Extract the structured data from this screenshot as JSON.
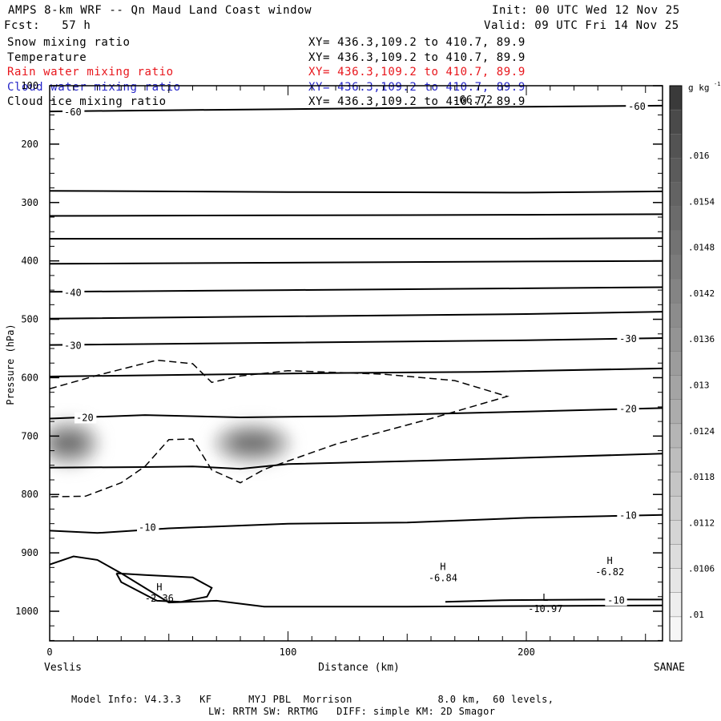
{
  "header": {
    "title": "AMPS 8-km WRF -- Qn Maud Land Coast window",
    "init": "Init: 00 UTC Wed 12 Nov 25",
    "fcst": "Fcst:   57 h",
    "valid": "Valid: 09 UTC Fri 14 Nov 25"
  },
  "fields": [
    {
      "name": "Snow mixing ratio",
      "xy": "XY= 436.3,109.2 to 410.7, 89.9",
      "color": "#000000"
    },
    {
      "name": "Temperature",
      "xy": "XY= 436.3,109.2 to 410.7, 89.9",
      "color": "#000000"
    },
    {
      "name": "Rain water mixing ratio",
      "xy": "XY= 436.3,109.2 to 410.7, 89.9",
      "color": "#e8161c"
    },
    {
      "name": "Cloud water mixing ratio",
      "xy": "XY= 436.3,109.2 to 410.7, 89.9",
      "color": "#2424c8"
    },
    {
      "name": "Cloud ice mixing ratio",
      "xy": "XY= 436.3,109.2 to 410.7, 89.9",
      "color": "#000000"
    }
  ],
  "overlap_label": "-66.72",
  "footer": {
    "line1": "Model Info: V4.3.3   KF      MYJ PBL  Morrison              8.0 km,  60 levels,",
    "line2": "LW: RRTM SW: RRTMG   DIFF: simple KM: 2D Smagor"
  },
  "chart_data": {
    "type": "cross-section",
    "xlabel": "Distance (km)",
    "ylabel": "Pressure (hPa)",
    "xlim": [
      0,
      258
    ],
    "ylim": [
      1050,
      100
    ],
    "x_ticks": [
      0,
      100,
      200
    ],
    "y_ticks": [
      100,
      200,
      300,
      400,
      500,
      600,
      700,
      800,
      900,
      1000
    ],
    "left_endpoint": "Veslis",
    "right_endpoint": "SANAE",
    "colorbar": {
      "unit": "g kg",
      "unit_exp": "-1",
      "labels": [
        ".016",
        ".0154",
        ".0148",
        ".0142",
        ".0136",
        ".013",
        ".0124",
        ".0118",
        ".0112",
        ".0106",
        ".01"
      ],
      "levels": [
        0.0166,
        0.016,
        0.0157,
        0.0154,
        0.0151,
        0.0148,
        0.0145,
        0.0142,
        0.0139,
        0.0136,
        0.0133,
        0.013,
        0.0127,
        0.0124,
        0.0121,
        0.0118,
        0.0115,
        0.0112,
        0.0109,
        0.0106,
        0.0103,
        0.01,
        0.0097
      ]
    },
    "temperature_contours": [
      {
        "label": "-60",
        "points": [
          [
            0,
            144
          ],
          [
            50,
            142
          ],
          [
            100,
            140
          ],
          [
            150,
            138
          ],
          [
            200,
            136
          ],
          [
            258,
            134
          ]
        ]
      },
      {
        "label": "",
        "points": [
          [
            0,
            280
          ],
          [
            100,
            282
          ],
          [
            200,
            283
          ],
          [
            258,
            281
          ]
        ]
      },
      {
        "label": "",
        "points": [
          [
            0,
            323
          ],
          [
            100,
            322
          ],
          [
            200,
            321
          ],
          [
            258,
            320
          ]
        ]
      },
      {
        "label": "",
        "points": [
          [
            0,
            362
          ],
          [
            100,
            362
          ],
          [
            200,
            362
          ],
          [
            258,
            361
          ]
        ]
      },
      {
        "label": "",
        "points": [
          [
            0,
            405
          ],
          [
            100,
            403
          ],
          [
            200,
            401
          ],
          [
            258,
            400
          ]
        ]
      },
      {
        "label": "-40",
        "points": [
          [
            0,
            453
          ],
          [
            100,
            450
          ],
          [
            200,
            447
          ],
          [
            258,
            445
          ]
        ]
      },
      {
        "label": "",
        "points": [
          [
            0,
            499
          ],
          [
            100,
            495
          ],
          [
            200,
            491
          ],
          [
            258,
            487
          ]
        ]
      },
      {
        "label": "-30",
        "points": [
          [
            0,
            544
          ],
          [
            100,
            540
          ],
          [
            200,
            536
          ],
          [
            258,
            532
          ]
        ]
      },
      {
        "label": "",
        "points": [
          [
            0,
            598
          ],
          [
            60,
            595
          ],
          [
            120,
            592
          ],
          [
            180,
            590
          ],
          [
            258,
            584
          ]
        ]
      },
      {
        "label": "-20",
        "points": [
          [
            0,
            670
          ],
          [
            40,
            664
          ],
          [
            80,
            668
          ],
          [
            120,
            666
          ],
          [
            200,
            658
          ],
          [
            258,
            652
          ]
        ]
      },
      {
        "label": "",
        "points": [
          [
            0,
            754
          ],
          [
            40,
            753
          ],
          [
            60,
            752
          ],
          [
            80,
            756
          ],
          [
            100,
            748
          ],
          [
            160,
            742
          ],
          [
            258,
            730
          ]
        ]
      },
      {
        "label": "-10",
        "points": [
          [
            0,
            862
          ],
          [
            20,
            866
          ],
          [
            50,
            858
          ],
          [
            100,
            850
          ],
          [
            150,
            848
          ],
          [
            200,
            840
          ],
          [
            258,
            835
          ]
        ]
      },
      {
        "label": "",
        "points": [
          [
            0,
            920
          ],
          [
            10,
            906
          ],
          [
            20,
            912
          ],
          [
            30,
            935
          ],
          [
            50,
            985
          ],
          [
            70,
            982
          ],
          [
            90,
            992
          ],
          [
            150,
            992
          ],
          [
            258,
            990
          ]
        ]
      },
      {
        "label": "",
        "points": [
          [
            28,
            935
          ],
          [
            40,
            938
          ],
          [
            60,
            942
          ],
          [
            68,
            960
          ],
          [
            66,
            975
          ],
          [
            55,
            984
          ],
          [
            45,
            982
          ],
          [
            30,
            950
          ],
          [
            28,
            935
          ]
        ]
      },
      {
        "label": "-10",
        "points": [
          [
            166,
            984
          ],
          [
            190,
            981
          ],
          [
            230,
            980
          ],
          [
            258,
            980
          ]
        ]
      }
    ],
    "dashed_contours": [
      {
        "points": [
          [
            0,
            619
          ],
          [
            20,
            596
          ],
          [
            45,
            570
          ],
          [
            60,
            576
          ],
          [
            68,
            608
          ],
          [
            80,
            597
          ],
          [
            100,
            588
          ],
          [
            140,
            594
          ],
          [
            170,
            605
          ],
          [
            192,
            632
          ],
          [
            160,
            670
          ],
          [
            120,
            714
          ],
          [
            90,
            757
          ],
          [
            80,
            780
          ],
          [
            68,
            758
          ],
          [
            60,
            705
          ],
          [
            50,
            706
          ],
          [
            40,
            752
          ],
          [
            30,
            780
          ],
          [
            15,
            803
          ],
          [
            0,
            804
          ]
        ]
      }
    ],
    "shaded_blobs": [
      {
        "x": 8,
        "p": 712,
        "value": 0.0142
      },
      {
        "x": 85,
        "p": 712,
        "value": 0.0145
      }
    ],
    "extrema": [
      {
        "type": "H",
        "value": "-2.36",
        "x": 46,
        "p": 975
      },
      {
        "type": "H",
        "value": "-6.84",
        "x": 165,
        "p": 940
      },
      {
        "type": "H",
        "value": "-6.82",
        "x": 235,
        "p": 930
      },
      {
        "type": "L",
        "value": "-10.97",
        "x": 208,
        "p": 993
      }
    ]
  }
}
